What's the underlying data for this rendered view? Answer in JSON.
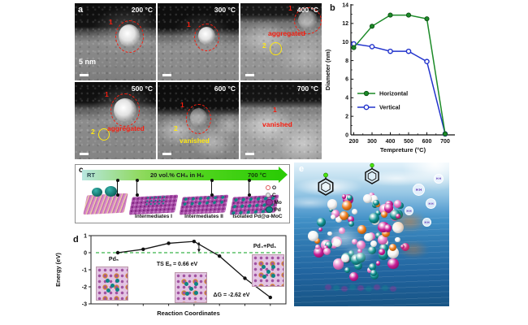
{
  "figure": {
    "background": "#ffffff"
  },
  "panel_a": {
    "label": "a",
    "scale_label": "5 nm",
    "tiles": [
      {
        "temp": "200 °C",
        "marker1": "1"
      },
      {
        "temp": "300 °C",
        "marker1": "1"
      },
      {
        "temp": "400 °C",
        "marker1": "1",
        "marker2": "2",
        "note": "aggregated"
      },
      {
        "temp": "500 °C",
        "marker1": "1",
        "marker2": "2",
        "note": "aggregated"
      },
      {
        "temp": "600 °C",
        "marker1": "1",
        "marker2": "2",
        "note": "vanished"
      },
      {
        "temp": "700 °C",
        "marker1": "1",
        "note": "vanished"
      }
    ],
    "annotation_colors": {
      "red": "#f51d0f",
      "yellow": "#ffe812"
    }
  },
  "panel_b": {
    "label": "b"
  },
  "panel_c": {
    "label": "c",
    "arrow_start": "RT",
    "arrow_mid": "20 vol.% CH₄ in H₂",
    "arrow_end": "700 °C",
    "structure_labels": [
      "Intermediates I",
      "Intermediates II",
      "Isolated Pd@α-MoC"
    ],
    "legend": [
      {
        "label": "O",
        "fill": "#ffffff",
        "ring": "#e05a5a",
        "size": "small"
      },
      {
        "label": "C",
        "fill": "#e0e0e0",
        "ring": "#9a9a9a",
        "size": "small"
      },
      {
        "label": "Mo",
        "fill": "#993399",
        "ring": "#6a1f6a",
        "size": "large"
      },
      {
        "label": "Pd",
        "fill": "#0e8585",
        "ring": "#07504f",
        "size": "large"
      }
    ]
  },
  "panel_d": {
    "label": "d",
    "annotations": {
      "initial": "Pd₅",
      "ts": "TS Eₐ = 0.66 eV",
      "final": "Pd₄+Pd₁",
      "dg": "ΔG = -2.62 eV"
    }
  },
  "panel_e": {
    "label": "e",
    "bubble_label": "H H"
  },
  "chart_data": [
    {
      "id": "b",
      "type": "line",
      "title": "",
      "xlabel": "Tempreture (°C)",
      "ylabel": "Diameter (nm)",
      "x": [
        200,
        300,
        400,
        500,
        600,
        700
      ],
      "series": [
        {
          "name": "Horizontal",
          "color": "#1b8a27",
          "dark": "#0b4d12",
          "marker": "filled-circle",
          "values": [
            9.4,
            11.7,
            12.9,
            12.9,
            12.5,
            0.1
          ]
        },
        {
          "name": "Vertical",
          "color": "#2233cc",
          "dark": "#14208a",
          "marker": "open-circle",
          "values": [
            9.8,
            9.5,
            9.0,
            9.0,
            7.9,
            0.1
          ]
        }
      ],
      "xlim": [
        160,
        750
      ],
      "ylim": [
        0,
        14
      ],
      "yticks": [
        0,
        2,
        4,
        6,
        8,
        10,
        12,
        14
      ],
      "xticks": [
        200,
        300,
        400,
        500,
        600,
        700
      ],
      "grid": false,
      "legend_position": "center-left"
    },
    {
      "id": "d",
      "type": "line",
      "title": "",
      "xlabel": "Reaction Coordinates",
      "ylabel": "Energy (eV)",
      "x": [
        1,
        2,
        3,
        4,
        5,
        6,
        7
      ],
      "values": [
        0,
        0.2,
        0.55,
        0.66,
        -0.2,
        -1.5,
        -2.62
      ],
      "ylim": [
        -3,
        1
      ],
      "yticks": [
        1,
        0,
        -1,
        -2,
        -3
      ],
      "baseline": 0,
      "line_color": "#161616",
      "baseline_color": "#3bb54a",
      "grid": false
    }
  ]
}
